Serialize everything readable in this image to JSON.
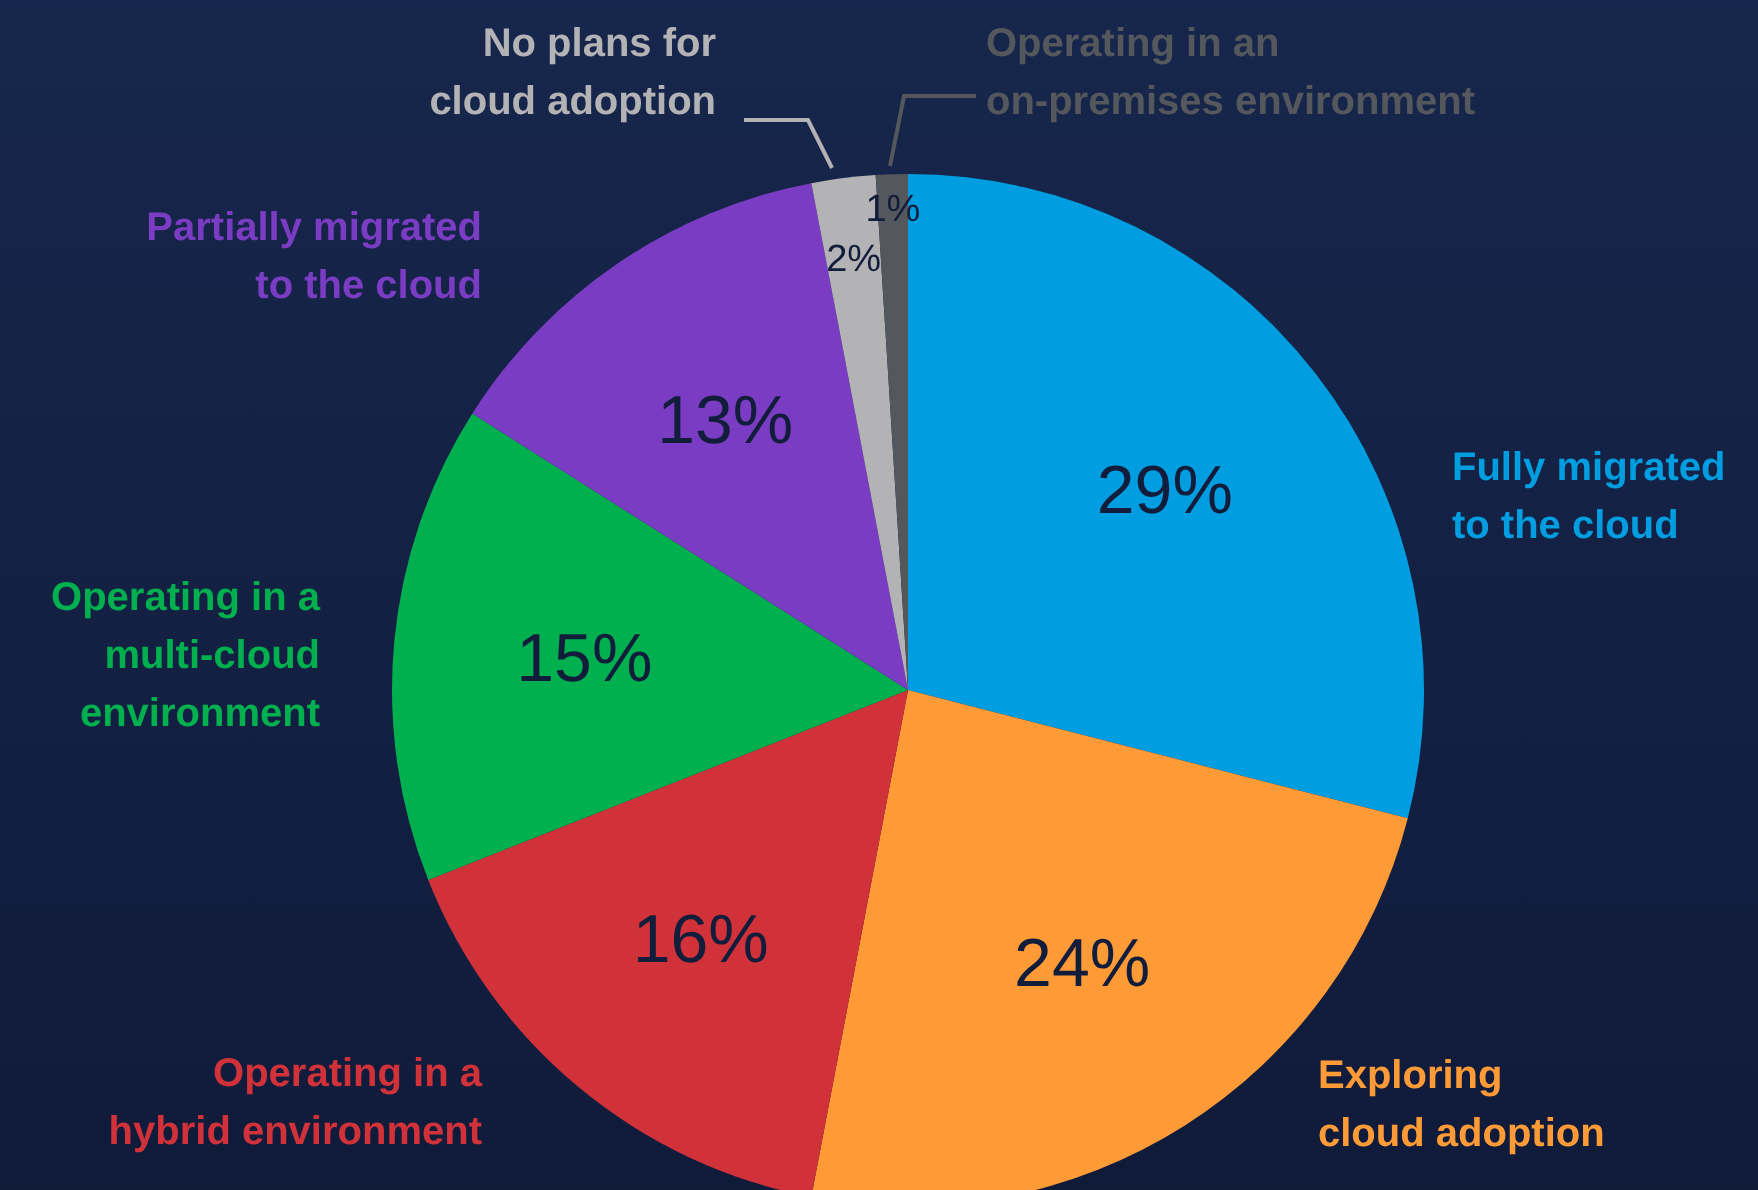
{
  "chart_data": {
    "type": "pie",
    "categories": [
      "Fully migrated to the cloud",
      "Exploring cloud adoption",
      "Operating in a hybrid environment",
      "Operating in a multi-cloud environment",
      "Partially migrated to the cloud",
      "No plans for cloud adoption",
      "Operating in an on-premises environment"
    ],
    "values": [
      29,
      24,
      16,
      15,
      13,
      2,
      1
    ],
    "colors": [
      "#009ee0",
      "#ff9b37",
      "#d1323a",
      "#00b04f",
      "#7a3cc2",
      "#b3b3b5",
      "#54575c"
    ],
    "value_labels": [
      "29%",
      "24%",
      "16%",
      "15%",
      "13%",
      "2%",
      "1%"
    ]
  }
}
